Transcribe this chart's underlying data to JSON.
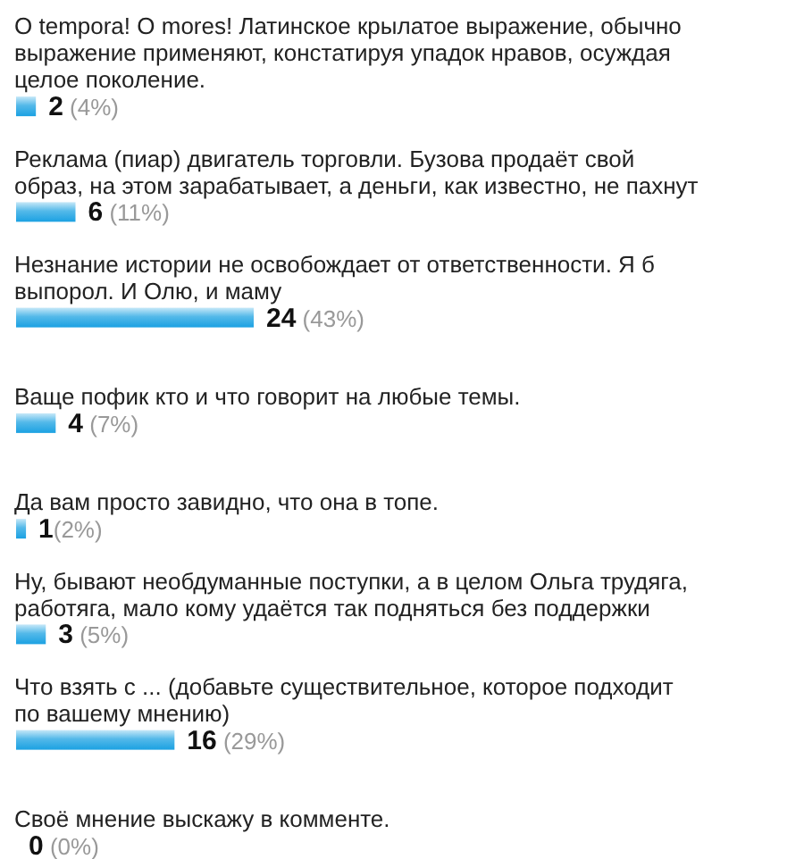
{
  "chart_data": {
    "type": "bar",
    "orientation": "horizontal",
    "categories": [
      "O tempora! O mores! Латинское крылатое выражение, обычно выражение применяют, констатируя упадок нравов, осуждая целое поколение.",
      "Реклама (пиар) двигатель торговли. Бузова продаёт свой образ, на этом зарабатывает, а деньги, как известно, не пахнут",
      "Незнание истории не освобождает от ответственности. Я б выпорол. И Олю, и маму",
      "Ваще пофик кто и что говорит на любые темы.",
      "Да вам просто завидно, что она в топе.",
      "Ну, бывают необдуманные поступки, а в целом Ольга трудяга, работяга, мало кому удаётся так подняться без поддержки",
      "Что взять с ... (добавьте существительное, которое подходит по вашему мнению)",
      "Своё мнение выскажу в комменте."
    ],
    "values": [
      2,
      6,
      24,
      4,
      1,
      3,
      16,
      0
    ],
    "color": "#1ba1e2",
    "value_labels": [
      "2 (4%)",
      "6 (11%)",
      "24 (43%)",
      "4 (7%)",
      "1(2%)",
      "3 (5%)",
      "16 (29%)",
      "0 (0%)"
    ],
    "tick_labels": "y"
  }
}
